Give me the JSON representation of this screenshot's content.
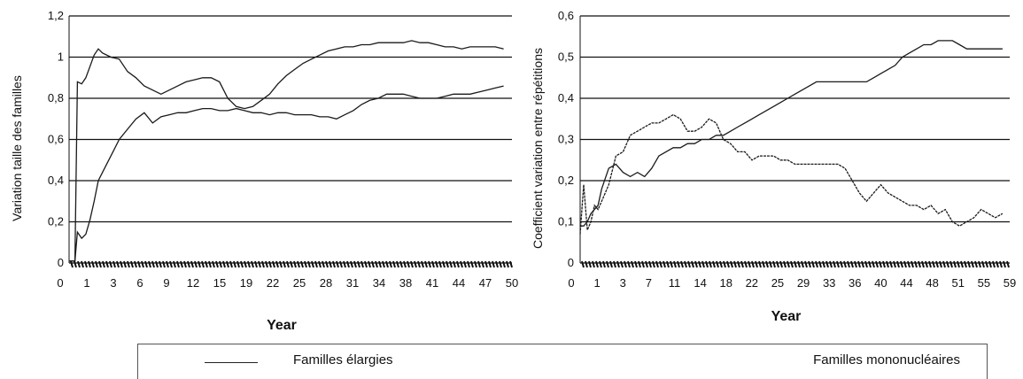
{
  "chart_data": [
    {
      "type": "line",
      "ylabel": "Variation taille des familles",
      "xlabel": "Year",
      "ylim": [
        0,
        1.2
      ],
      "y_ticks": [
        "0",
        "0,2",
        "0,4",
        "0,6",
        "0,8",
        "1",
        "1,2"
      ],
      "x_ticks": [
        "0",
        "1",
        "3",
        "6",
        "9",
        "12",
        "15",
        "19",
        "22",
        "25",
        "28",
        "31",
        "34",
        "38",
        "41",
        "44",
        "47",
        "50"
      ],
      "xlim": [
        0,
        53
      ],
      "grid": true,
      "series": [
        {
          "name": "Familles élargies",
          "x": [
            0,
            0.7,
            1,
            1.5,
            2,
            3,
            3.5,
            4,
            5,
            6,
            7,
            8,
            9,
            10,
            11,
            12,
            13,
            14,
            15,
            16,
            17,
            18,
            19,
            20,
            21,
            22,
            23,
            24,
            25,
            26,
            27,
            28,
            29,
            30,
            31,
            32,
            33,
            34,
            35,
            36,
            37,
            38,
            39,
            40,
            41,
            42,
            43,
            44,
            45,
            46,
            47,
            48,
            49,
            50,
            51,
            52
          ],
          "values": [
            0.01,
            0.01,
            0.88,
            0.87,
            0.9,
            1.01,
            1.04,
            1.02,
            1.0,
            0.99,
            0.93,
            0.9,
            0.86,
            0.84,
            0.82,
            0.84,
            0.86,
            0.88,
            0.89,
            0.9,
            0.9,
            0.88,
            0.8,
            0.76,
            0.75,
            0.76,
            0.79,
            0.82,
            0.87,
            0.91,
            0.94,
            0.97,
            0.99,
            1.01,
            1.03,
            1.04,
            1.05,
            1.05,
            1.06,
            1.06,
            1.07,
            1.07,
            1.07,
            1.07,
            1.08,
            1.07,
            1.07,
            1.06,
            1.05,
            1.05,
            1.04,
            1.05,
            1.05,
            1.05,
            1.05,
            1.04
          ]
        },
        {
          "name": "Familles mononucléaires",
          "x": [
            0,
            0.7,
            1,
            1.5,
            2,
            2.5,
            3,
            3.5,
            4,
            5,
            6,
            7,
            8,
            9,
            10,
            11,
            12,
            13,
            14,
            15,
            16,
            17,
            18,
            19,
            20,
            21,
            22,
            23,
            24,
            25,
            26,
            27,
            28,
            29,
            30,
            31,
            32,
            33,
            34,
            35,
            36,
            37,
            38,
            39,
            40,
            41,
            42,
            43,
            44,
            45,
            46,
            47,
            48,
            49,
            50,
            51,
            52
          ],
          "values": [
            0.01,
            0.01,
            0.15,
            0.12,
            0.14,
            0.21,
            0.3,
            0.4,
            0.44,
            0.52,
            0.6,
            0.65,
            0.7,
            0.73,
            0.68,
            0.71,
            0.72,
            0.73,
            0.73,
            0.74,
            0.75,
            0.75,
            0.74,
            0.74,
            0.75,
            0.74,
            0.73,
            0.73,
            0.72,
            0.73,
            0.73,
            0.72,
            0.72,
            0.72,
            0.71,
            0.71,
            0.7,
            0.72,
            0.74,
            0.77,
            0.79,
            0.8,
            0.82,
            0.82,
            0.82,
            0.81,
            0.8,
            0.8,
            0.8,
            0.81,
            0.82,
            0.82,
            0.82,
            0.83,
            0.84,
            0.85,
            0.86
          ]
        }
      ]
    },
    {
      "type": "line",
      "ylabel": "Coefficient variation entre répétitions",
      "xlabel": "Year",
      "ylim": [
        0,
        0.6
      ],
      "y_ticks": [
        "0",
        "0,1",
        "0,2",
        "0,3",
        "0,4",
        "0,5",
        "0,6"
      ],
      "x_ticks": [
        "0",
        "1",
        "3",
        "7",
        "11",
        "14",
        "18",
        "22",
        "25",
        "29",
        "33",
        "36",
        "40",
        "44",
        "48",
        "51",
        "55",
        "59"
      ],
      "xlim": [
        0,
        60
      ],
      "grid": true,
      "series": [
        {
          "name": "Familles élargies",
          "x": [
            0,
            0.5,
            1,
            1.5,
            2,
            2.5,
            3,
            4,
            5,
            6,
            7,
            8,
            9,
            10,
            11,
            12,
            13,
            14,
            15,
            16,
            17,
            18,
            19,
            20,
            21,
            22,
            23,
            24,
            25,
            26,
            27,
            28,
            29,
            30,
            31,
            32,
            33,
            34,
            35,
            36,
            37,
            38,
            39,
            40,
            41,
            42,
            43,
            44,
            45,
            46,
            47,
            48,
            49,
            50,
            51,
            52,
            53,
            54,
            55,
            56,
            57,
            58,
            59
          ],
          "values": [
            0.09,
            0.09,
            0.1,
            0.12,
            0.13,
            0.14,
            0.18,
            0.23,
            0.24,
            0.22,
            0.21,
            0.22,
            0.21,
            0.23,
            0.26,
            0.27,
            0.28,
            0.28,
            0.29,
            0.29,
            0.3,
            0.3,
            0.31,
            0.31,
            0.32,
            0.33,
            0.34,
            0.35,
            0.36,
            0.37,
            0.38,
            0.39,
            0.4,
            0.41,
            0.42,
            0.43,
            0.44,
            0.44,
            0.44,
            0.44,
            0.44,
            0.44,
            0.44,
            0.44,
            0.45,
            0.46,
            0.47,
            0.48,
            0.5,
            0.51,
            0.52,
            0.53,
            0.53,
            0.54,
            0.54,
            0.54,
            0.53,
            0.52,
            0.52,
            0.52,
            0.52,
            0.52,
            0.52
          ]
        },
        {
          "name": "Familles mononucléaires",
          "x": [
            0,
            0.5,
            1,
            1.5,
            2,
            2.5,
            3,
            4,
            5,
            6,
            7,
            8,
            9,
            10,
            11,
            12,
            13,
            14,
            15,
            16,
            17,
            18,
            19,
            20,
            21,
            22,
            23,
            24,
            25,
            26,
            27,
            28,
            29,
            30,
            31,
            32,
            33,
            34,
            35,
            36,
            37,
            38,
            39,
            40,
            41,
            42,
            43,
            44,
            45,
            46,
            47,
            48,
            49,
            50,
            51,
            52,
            53,
            54,
            55,
            56,
            57,
            58,
            59
          ],
          "values": [
            0.07,
            0.19,
            0.08,
            0.1,
            0.14,
            0.13,
            0.15,
            0.19,
            0.26,
            0.27,
            0.31,
            0.32,
            0.33,
            0.34,
            0.34,
            0.35,
            0.36,
            0.35,
            0.32,
            0.32,
            0.33,
            0.35,
            0.34,
            0.3,
            0.29,
            0.27,
            0.27,
            0.25,
            0.26,
            0.26,
            0.26,
            0.25,
            0.25,
            0.24,
            0.24,
            0.24,
            0.24,
            0.24,
            0.24,
            0.24,
            0.23,
            0.2,
            0.17,
            0.15,
            0.17,
            0.19,
            0.17,
            0.16,
            0.15,
            0.14,
            0.14,
            0.13,
            0.14,
            0.12,
            0.13,
            0.1,
            0.09,
            0.1,
            0.11,
            0.13,
            0.12,
            0.11,
            0.12
          ]
        }
      ]
    }
  ],
  "legend": {
    "entries": [
      "Familles élargies",
      "Familles mononucléaires"
    ]
  }
}
